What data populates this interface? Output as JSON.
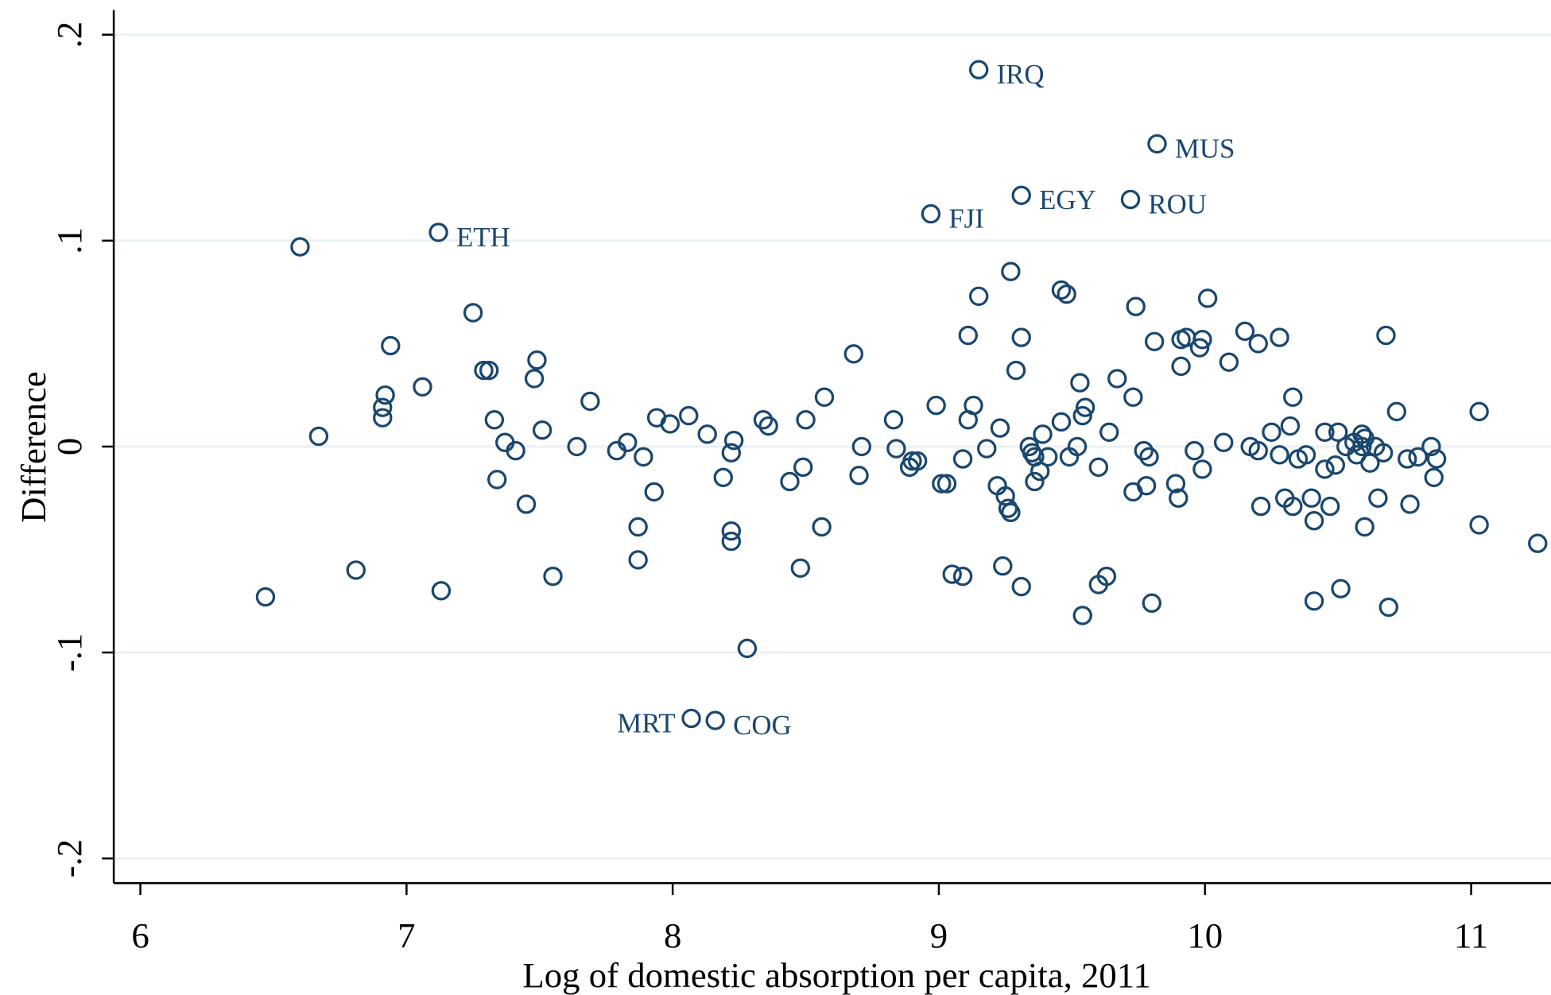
{
  "chart_data": {
    "type": "scatter",
    "x_label": "Log of domestic absorption per capita, 2011",
    "y_label": "Difference",
    "color": "#1a476f",
    "grid": true,
    "xlim": [
      5.9,
      11.3
    ],
    "ylim": [
      -0.212,
      0.212
    ],
    "xticks": [
      6,
      7,
      8,
      9,
      10,
      11
    ],
    "yticks": [
      {
        "value": 0.2,
        "label": ".2"
      },
      {
        "value": 0.1,
        "label": ".1"
      },
      0,
      {
        "value": -0.1,
        "label": "-.1"
      },
      {
        "value": -0.2,
        "label": "-.2"
      }
    ],
    "x": [
      6.47,
      6.6,
      6.67,
      6.81,
      6.91,
      6.91,
      6.92,
      6.94,
      7.06,
      7.12,
      7.13,
      7.25,
      7.29,
      7.31,
      7.33,
      7.34,
      7.37,
      7.41,
      7.45,
      7.48,
      7.49,
      7.51,
      7.55,
      7.64,
      7.69,
      7.79,
      7.83,
      7.87,
      7.87,
      7.89,
      7.93,
      7.94,
      7.99,
      8.06,
      8.07,
      8.13,
      8.16,
      8.19,
      8.22,
      8.22,
      8.22,
      8.23,
      8.28,
      8.34,
      8.36,
      8.44,
      8.48,
      8.49,
      8.5,
      8.56,
      8.57,
      8.68,
      8.7,
      8.71,
      8.83,
      8.84,
      8.89,
      8.9,
      8.92,
      8.97,
      8.99,
      9.01,
      9.03,
      9.05,
      9.09,
      9.09,
      9.11,
      9.11,
      9.13,
      9.15,
      9.15,
      9.18,
      9.23,
      9.22,
      9.24,
      9.25,
      9.26,
      9.27,
      9.27,
      9.29,
      9.31,
      9.31,
      9.31,
      9.34,
      9.35,
      9.36,
      9.36,
      9.38,
      9.39,
      9.41,
      9.46,
      9.48,
      9.46,
      9.49,
      9.52,
      9.53,
      9.54,
      9.54,
      9.55,
      9.6,
      9.6,
      9.63,
      9.64,
      9.67,
      9.72,
      9.73,
      9.73,
      9.74,
      9.77,
      9.78,
      9.79,
      9.8,
      9.81,
      9.82,
      9.89,
      9.9,
      9.91,
      9.91,
      9.93,
      9.96,
      9.98,
      9.99,
      9.99,
      10.01,
      10.07,
      10.09,
      10.15,
      10.17,
      10.2,
      10.2,
      10.21,
      10.25,
      10.28,
      10.28,
      10.3,
      10.32,
      10.33,
      10.33,
      10.35,
      10.38,
      10.4,
      10.41,
      10.41,
      10.45,
      10.45,
      10.47,
      10.49,
      10.5,
      10.51,
      10.53,
      10.56,
      10.57,
      10.59,
      10.59,
      10.6,
      10.6,
      10.62,
      10.64,
      10.65,
      10.67,
      10.68,
      10.69,
      10.72,
      10.76,
      10.77,
      10.8,
      10.85,
      10.86,
      10.87,
      11.03,
      11.03,
      11.25
    ],
    "values": [
      -0.073,
      0.097,
      0.005,
      -0.06,
      0.014,
      0.019,
      0.025,
      0.049,
      0.029,
      0.104,
      -0.07,
      0.065,
      0.037,
      0.037,
      0.013,
      -0.016,
      0.002,
      -0.002,
      -0.028,
      0.033,
      0.042,
      0.008,
      -0.063,
      0.0,
      0.022,
      -0.002,
      0.002,
      -0.039,
      -0.055,
      -0.005,
      -0.022,
      0.014,
      0.011,
      0.015,
      -0.132,
      0.006,
      -0.133,
      -0.015,
      -0.003,
      -0.041,
      -0.046,
      0.003,
      -0.098,
      0.013,
      0.01,
      -0.017,
      -0.059,
      -0.01,
      0.013,
      -0.039,
      0.024,
      0.045,
      -0.014,
      0.0,
      0.013,
      -0.001,
      -0.01,
      -0.007,
      -0.007,
      0.113,
      0.02,
      -0.018,
      -0.018,
      -0.062,
      -0.063,
      -0.006,
      0.054,
      0.013,
      0.02,
      0.073,
      0.183,
      -0.001,
      0.009,
      -0.019,
      -0.058,
      -0.024,
      -0.03,
      -0.032,
      0.085,
      0.037,
      0.122,
      0.053,
      -0.068,
      0.0,
      -0.003,
      -0.005,
      -0.017,
      -0.012,
      0.006,
      -0.005,
      0.076,
      0.074,
      0.012,
      -0.005,
      0.0,
      0.031,
      -0.082,
      0.015,
      0.019,
      -0.067,
      -0.01,
      -0.063,
      0.007,
      0.033,
      0.12,
      -0.022,
      0.024,
      0.068,
      -0.002,
      -0.019,
      -0.005,
      -0.076,
      0.051,
      0.147,
      -0.018,
      -0.025,
      0.039,
      0.052,
      0.053,
      -0.002,
      0.048,
      0.052,
      -0.011,
      0.072,
      0.002,
      0.041,
      0.056,
      0.0,
      -0.002,
      0.05,
      -0.029,
      0.007,
      0.053,
      -0.004,
      -0.025,
      0.01,
      -0.029,
      0.024,
      -0.006,
      -0.004,
      -0.025,
      -0.075,
      -0.036,
      -0.011,
      0.007,
      -0.029,
      -0.009,
      0.007,
      -0.069,
      0.0,
      0.002,
      -0.004,
      0.006,
      0.0,
      -0.039,
      0.004,
      -0.008,
      0.0,
      -0.025,
      -0.003,
      0.054,
      -0.078,
      0.017,
      -0.006,
      -0.028,
      -0.005,
      0.0,
      -0.015,
      -0.006,
      0.017,
      -0.038,
      -0.047
    ],
    "labels": {
      "9": "ETH",
      "34": "MRT",
      "36": "COG",
      "59": "FJI",
      "70": "IRQ",
      "80": "EGY",
      "104": "ROU",
      "113": "MUS"
    }
  }
}
